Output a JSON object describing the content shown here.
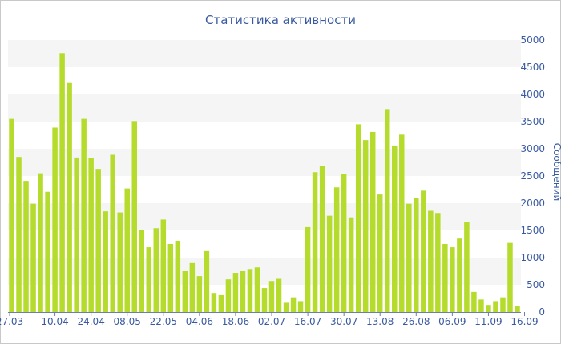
{
  "chart_data": {
    "type": "bar",
    "title": "Статистика активности",
    "xlabel": "",
    "ylabel": "Сообщений",
    "ylim": [
      0,
      5000
    ],
    "yticks": [
      0,
      500,
      1000,
      1500,
      2000,
      2500,
      3000,
      3500,
      4000,
      4500,
      5000
    ],
    "y_axis_side": "right",
    "grid": "alternating horizontal bands",
    "legend": "none",
    "colors": {
      "bar": "#b5db2c",
      "band": "#f5f5f5",
      "text": "#3a5aa0"
    },
    "x_tick_labels": [
      "27.03",
      "10.04",
      "24.04",
      "08.05",
      "22.05",
      "04.06",
      "18.06",
      "02.07",
      "16.07",
      "30.07",
      "13.08",
      "26.08",
      "06.09",
      "11.09",
      "16.09"
    ],
    "x_tick_positions": [
      0,
      6,
      11,
      16,
      21,
      26,
      31,
      36,
      41,
      46,
      51,
      56,
      61,
      66,
      71
    ],
    "values": [
      3550,
      2850,
      2410,
      1990,
      2550,
      2210,
      3390,
      4760,
      4210,
      2840,
      3550,
      2830,
      2630,
      1850,
      2890,
      1830,
      2270,
      3510,
      1510,
      1190,
      1540,
      1700,
      1250,
      1310,
      750,
      900,
      660,
      1120,
      350,
      310,
      600,
      720,
      750,
      790,
      820,
      440,
      570,
      610,
      170,
      270,
      200,
      1560,
      2570,
      2680,
      1770,
      2290,
      2530,
      1740,
      3450,
      3160,
      3310,
      2160,
      3730,
      3060,
      3260,
      1990,
      2100,
      2230,
      1860,
      1820,
      1250,
      1190,
      1350,
      1660,
      370,
      230,
      130,
      200,
      270,
      1270,
      110
    ]
  }
}
